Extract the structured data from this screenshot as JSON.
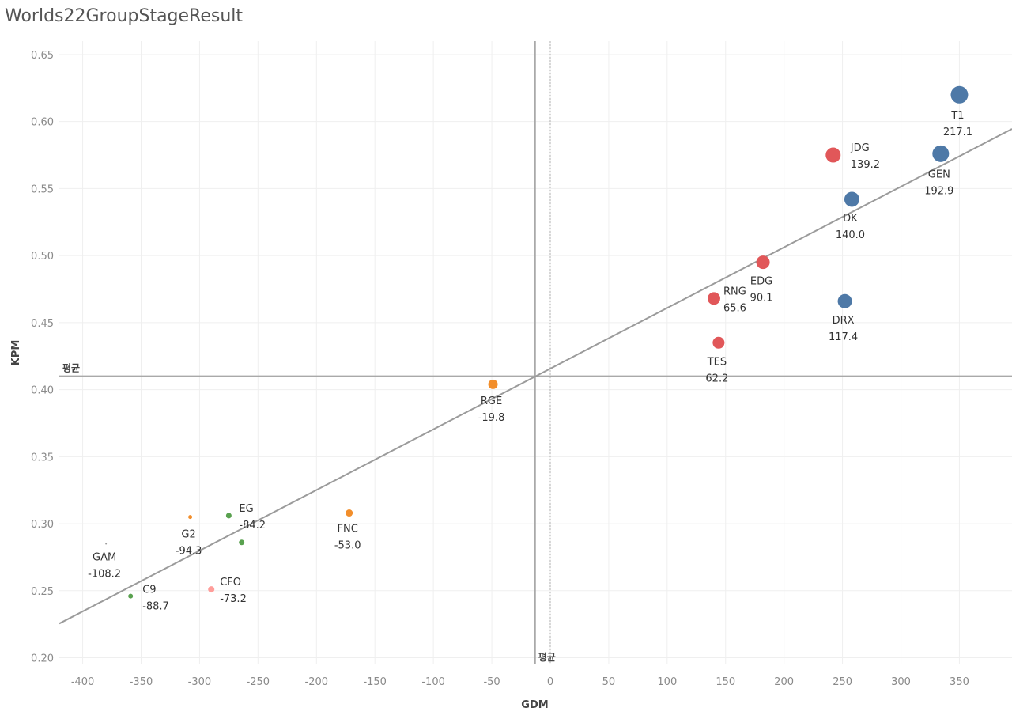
{
  "page": {
    "title": "Worlds22GroupStageResult"
  },
  "chart_data": {
    "type": "scatter",
    "title": "Worlds22GroupStageResult",
    "xlabel": "GDM",
    "ylabel": "KPM",
    "xlim": [
      -420,
      395
    ],
    "ylim": [
      0.195,
      0.66
    ],
    "xticks": [
      -400,
      -350,
      -300,
      -250,
      -200,
      -150,
      -100,
      -50,
      0,
      50,
      100,
      150,
      200,
      250,
      300,
      350
    ],
    "yticks": [
      0.2,
      0.25,
      0.3,
      0.35,
      0.4,
      0.45,
      0.5,
      0.55,
      0.6,
      0.65
    ],
    "ytick_labels": [
      "0.20",
      "0.25",
      "0.30",
      "0.35",
      "0.40",
      "0.45",
      "0.50",
      "0.55",
      "0.60",
      "0.65"
    ],
    "grid": true,
    "colors": {
      "blue": "#4e79a7",
      "red": "#e15759",
      "orange": "#f28e2b",
      "green": "#59a14f",
      "pink": "#ff9d9a",
      "gray": "#9b9b9b"
    },
    "points": [
      {
        "team": "T1",
        "value": "217.1",
        "x": 350,
        "y": 0.62,
        "color": "#4e79a7",
        "size": 22
      },
      {
        "team": "GEN",
        "value": "192.9",
        "x": 334,
        "y": 0.576,
        "color": "#4e79a7",
        "size": 21
      },
      {
        "team": "JDG",
        "value": "139.2",
        "x": 242,
        "y": 0.575,
        "color": "#e15759",
        "size": 19
      },
      {
        "team": "DK",
        "value": "140.0",
        "x": 258,
        "y": 0.542,
        "color": "#4e79a7",
        "size": 19
      },
      {
        "team": "EDG",
        "value": "90.1",
        "x": 182,
        "y": 0.495,
        "color": "#e15759",
        "size": 17
      },
      {
        "team": "RNG",
        "value": "65.6",
        "x": 140,
        "y": 0.468,
        "color": "#e15759",
        "size": 16
      },
      {
        "team": "DRX",
        "value": "117.4",
        "x": 252,
        "y": 0.466,
        "color": "#4e79a7",
        "size": 18
      },
      {
        "team": "TES",
        "value": "62.2",
        "x": 144,
        "y": 0.435,
        "color": "#e15759",
        "size": 15
      },
      {
        "team": "RGE",
        "value": "-19.8",
        "x": -49,
        "y": 0.404,
        "color": "#f28e2b",
        "size": 12
      },
      {
        "team": "FNC",
        "value": "-53.0",
        "x": -172,
        "y": 0.308,
        "color": "#f28e2b",
        "size": 9
      },
      {
        "team": "EG",
        "value": "-84.2",
        "x": -275,
        "y": 0.306,
        "color": "#59a14f",
        "size": 7
      },
      {
        "team": "",
        "value": "",
        "x": -264,
        "y": 0.286,
        "color": "#59a14f",
        "size": 7
      },
      {
        "team": "G2",
        "value": "-94.3",
        "x": -308,
        "y": 0.305,
        "color": "#f28e2b",
        "size": 5
      },
      {
        "team": "GAM",
        "value": "-108.2",
        "x": -380,
        "y": 0.285,
        "color": "#9b9b9b",
        "size": 2
      },
      {
        "team": "CFO",
        "value": "-73.2",
        "x": -290,
        "y": 0.251,
        "color": "#ff9d9a",
        "size": 8
      },
      {
        "team": "C9",
        "value": "-88.7",
        "x": -359,
        "y": 0.246,
        "color": "#59a14f",
        "size": 6
      }
    ],
    "trend_line": {
      "x": [
        -420,
        395
      ],
      "y": [
        0.2255,
        0.5945
      ],
      "color": "#9b9b9b"
    },
    "reference_lines": {
      "x_average": {
        "x": -13,
        "label": "평균"
      },
      "y_average": {
        "y": 0.41,
        "label": "평균"
      },
      "x_zero": {
        "x": 0
      }
    }
  }
}
